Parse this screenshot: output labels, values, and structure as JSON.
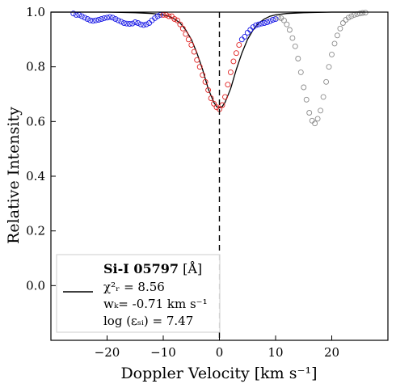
{
  "chart_data": {
    "type": "scatter",
    "title": "",
    "xlabel": "Doppler Velocity [km s⁻¹]",
    "ylabel": "Relative Intensity",
    "xlim": [
      -30,
      30
    ],
    "ylim": [
      -0.2,
      1.0
    ],
    "x_ticks": [
      -20,
      -10,
      0,
      10,
      20
    ],
    "x_tick_labels": [
      "−20",
      "−10",
      "0",
      "10",
      "20"
    ],
    "y_ticks": [
      0.0,
      0.2,
      0.4,
      0.6,
      0.8,
      1.0
    ],
    "y_tick_labels": [
      "0.0",
      "0.2",
      "0.4",
      "0.6",
      "0.8",
      "1.0"
    ],
    "vline_x": 0,
    "colors": {
      "fitted": "#e02020",
      "unfitted": "#1a1ae6",
      "blend": "#8c8c8c",
      "model": "#000000",
      "vline": "#000000"
    },
    "legend": {
      "position": "lower-left",
      "line_name": "",
      "title_bold": "Si-I 05797",
      "title_unit": " [Å]",
      "chi_label": "χ²ᵣ = 8.56",
      "w_label": "wₖ= -0.71 km s⁻¹",
      "log_label": "log (εₛᵢ) = 7.47"
    },
    "series": [
      {
        "style": "model-line",
        "x": [
          -30,
          -20,
          -15,
          -12,
          -10,
          -9,
          -8,
          -7,
          -6,
          -5,
          -4,
          -3,
          -2,
          -1,
          -0.5,
          0,
          0.5,
          1,
          2,
          3,
          4,
          5,
          6,
          7,
          8,
          9,
          10,
          12,
          15,
          20,
          26
        ],
        "y": [
          1.0,
          1.0,
          0.998,
          0.995,
          0.99,
          0.985,
          0.975,
          0.96,
          0.935,
          0.9,
          0.85,
          0.79,
          0.72,
          0.67,
          0.655,
          0.65,
          0.655,
          0.67,
          0.72,
          0.79,
          0.85,
          0.9,
          0.935,
          0.96,
          0.975,
          0.985,
          0.99,
          0.995,
          0.998,
          1.0,
          1.0
        ]
      },
      {
        "style": "open-circles",
        "x": [
          -26.0,
          -25.5,
          -25.0,
          -24.5,
          -24.0,
          -23.5,
          -23.0,
          -22.5,
          -22.0,
          -21.5,
          -21.0,
          -20.5,
          -20.0,
          -19.5,
          -19.0,
          -18.5,
          -18.0,
          -17.5,
          -17.0,
          -16.5,
          -16.0,
          -15.5,
          -15.0,
          -14.5,
          -14.0,
          -13.5,
          -13.0,
          -12.5,
          -12.0,
          -11.5,
          -11.0,
          -10.5,
          4.0,
          4.5,
          5.0,
          5.5,
          6.0,
          6.5,
          7.0,
          7.5,
          8.0,
          8.5,
          9.0,
          9.5,
          10.0
        ],
        "y": [
          0.995,
          0.99,
          0.99,
          0.985,
          0.98,
          0.975,
          0.97,
          0.968,
          0.97,
          0.972,
          0.975,
          0.978,
          0.98,
          0.982,
          0.98,
          0.975,
          0.97,
          0.965,
          0.96,
          0.958,
          0.957,
          0.958,
          0.963,
          0.96,
          0.955,
          0.953,
          0.955,
          0.96,
          0.97,
          0.978,
          0.985,
          0.99,
          0.9,
          0.91,
          0.925,
          0.935,
          0.945,
          0.952,
          0.955,
          0.958,
          0.96,
          0.963,
          0.967,
          0.972,
          0.975
        ]
      },
      {
        "style": "open-circles",
        "x": [
          -10.0,
          -9.5,
          -9.0,
          -8.5,
          -8.0,
          -7.5,
          -7.0,
          -6.5,
          -6.0,
          -5.5,
          -5.0,
          -4.5,
          -4.0,
          -3.5,
          -3.0,
          -2.5,
          -2.0,
          -1.5,
          -1.0,
          -0.5,
          0.0,
          0.5,
          1.0,
          1.5,
          2.0,
          2.5,
          3.0,
          3.5
        ],
        "y": [
          0.99,
          0.99,
          0.985,
          0.985,
          0.975,
          0.97,
          0.955,
          0.94,
          0.92,
          0.9,
          0.88,
          0.855,
          0.825,
          0.8,
          0.77,
          0.745,
          0.715,
          0.685,
          0.665,
          0.652,
          0.645,
          0.66,
          0.69,
          0.735,
          0.78,
          0.82,
          0.85,
          0.88
        ]
      },
      {
        "style": "open-circles",
        "x": [
          10.5,
          11.0,
          11.5,
          12.0,
          12.5,
          13.0,
          13.5,
          14.0,
          14.5,
          15.0,
          15.5,
          16.0,
          16.5,
          17.0,
          17.5,
          18.0,
          18.5,
          19.0,
          19.5,
          20.0,
          20.5,
          21.0,
          21.5,
          22.0,
          22.5,
          23.0,
          23.5,
          24.0,
          24.5,
          25.0,
          25.5,
          26.0
        ],
        "y": [
          0.98,
          0.978,
          0.97,
          0.955,
          0.935,
          0.905,
          0.875,
          0.83,
          0.78,
          0.725,
          0.68,
          0.632,
          0.603,
          0.593,
          0.61,
          0.64,
          0.69,
          0.745,
          0.8,
          0.845,
          0.885,
          0.915,
          0.94,
          0.96,
          0.972,
          0.98,
          0.985,
          0.99,
          0.993,
          0.995,
          0.997,
          0.998
        ]
      }
    ]
  }
}
